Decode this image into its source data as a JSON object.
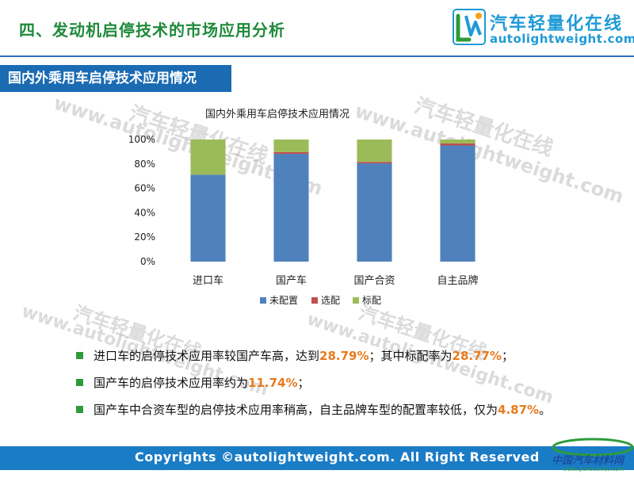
{
  "header": {
    "title": "四、发动机启停技术的市场应用分析",
    "logo_cn": "汽车轻量化在线",
    "logo_en": "autolightweight.com"
  },
  "section": {
    "title": "国内外乘用车启停技术应用情况"
  },
  "watermarks": [
    "汽车轻量化在线",
    "www.autolightweight.com"
  ],
  "chart_data": {
    "type": "bar",
    "stacked": true,
    "title": "国内外乘用车启停技术应用情况",
    "categories": [
      "进口车",
      "国产车",
      "国产合资",
      "自主品牌"
    ],
    "series": [
      {
        "name": "未配置",
        "values": [
          71.21,
          88.26,
          80.5,
          95.13
        ],
        "color": "#4f81bd"
      },
      {
        "name": "选配",
        "values": [
          0.02,
          1.5,
          1.2,
          1.7
        ],
        "color": "#c0504d"
      },
      {
        "name": "标配",
        "values": [
          28.77,
          10.24,
          18.3,
          3.17
        ],
        "color": "#9bbb59"
      }
    ],
    "yticks": [
      "0%",
      "20%",
      "40%",
      "60%",
      "80%",
      "100%"
    ],
    "ylim": [
      0,
      100
    ],
    "legend_position": "bottom",
    "grid": false
  },
  "bullets": [
    {
      "pre": "进口车的启停技术应用率较国产车高，达到",
      "hl1": "28.79%",
      "mid": "；其中标配率为",
      "hl2": "28.77%",
      "post": "；"
    },
    {
      "pre": "国产车的启停技术应用率约为",
      "hl1": "11.74%",
      "post": "；"
    },
    {
      "pre": "国产车中合资车型的启停技术应用率稍高，自主品牌车型的配置率较低，仅为",
      "hl1": "4.87%",
      "post": "。"
    }
  ],
  "footer": {
    "copyright": "Copyrights ©autolightweight.com. All Right Reserved",
    "logo_cn": "中国汽车材料网",
    "logo_en": "www.qichecailiao.com"
  }
}
